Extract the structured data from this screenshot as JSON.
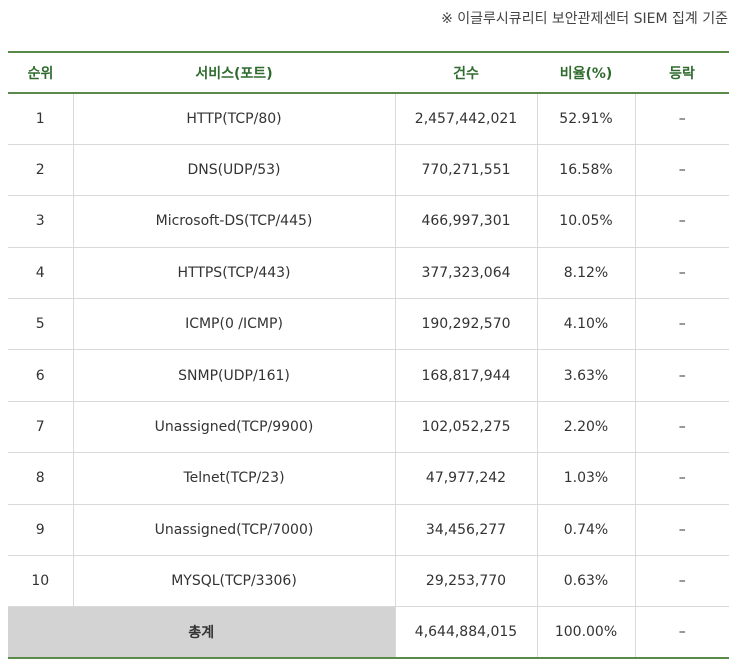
{
  "source_note": "※ 이글루시큐리티 보안관제센터 SIEM 집계 기준",
  "headers": {
    "rank": "순위",
    "service": "서비스(포트)",
    "count": "건수",
    "ratio": "비율(%)",
    "rise": "등락"
  },
  "rows": [
    {
      "rank": "1",
      "service": "HTTP(TCP/80)",
      "count": "2,457,442,021",
      "ratio": "52.91%",
      "rise": "–"
    },
    {
      "rank": "2",
      "service": "DNS(UDP/53)",
      "count": "770,271,551",
      "ratio": "16.58%",
      "rise": "–"
    },
    {
      "rank": "3",
      "service": "Microsoft-DS(TCP/445)",
      "count": "466,997,301",
      "ratio": "10.05%",
      "rise": "–"
    },
    {
      "rank": "4",
      "service": "HTTPS(TCP/443)",
      "count": "377,323,064",
      "ratio": "8.12%",
      "rise": "–"
    },
    {
      "rank": "5",
      "service": "ICMP(0 /ICMP)",
      "count": "190,292,570",
      "ratio": "4.10%",
      "rise": "–"
    },
    {
      "rank": "6",
      "service": "SNMP(UDP/161)",
      "count": "168,817,944",
      "ratio": "3.63%",
      "rise": "–"
    },
    {
      "rank": "7",
      "service": "Unassigned(TCP/9900)",
      "count": "102,052,275",
      "ratio": "2.20%",
      "rise": "–"
    },
    {
      "rank": "8",
      "service": "Telnet(TCP/23)",
      "count": "47,977,242",
      "ratio": "1.03%",
      "rise": "–"
    },
    {
      "rank": "9",
      "service": "Unassigned(TCP/7000)",
      "count": "34,456,277",
      "ratio": "0.74%",
      "rise": "–"
    },
    {
      "rank": "10",
      "service": "MYSQL(TCP/3306)",
      "count": "29,253,770",
      "ratio": "0.63%",
      "rise": "–"
    }
  ],
  "total": {
    "label": "총계",
    "count": "4,644,884,015",
    "ratio": "100.00%",
    "rise": "–"
  }
}
